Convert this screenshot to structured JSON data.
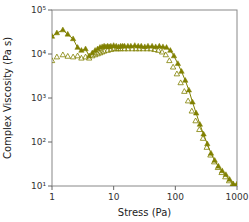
{
  "chart_data": {
    "type": "line",
    "xlabel": "Stress (Pa)",
    "ylabel": "Complex Viscosity (Pa s)",
    "log": true,
    "grid": false,
    "xlim": [
      1,
      1000
    ],
    "ylim": [
      10,
      100000
    ],
    "xticks": [
      1,
      10,
      100,
      1000
    ],
    "yticks": [
      {
        "value": 10,
        "label": "10¹"
      },
      {
        "value": 100,
        "label": "10²"
      },
      {
        "value": 1000,
        "label": "10³"
      },
      {
        "value": 10000,
        "label": "10⁴"
      },
      {
        "value": 100000,
        "label": "10⁵"
      }
    ],
    "series": [
      {
        "color": "#808000",
        "marker": "triangle",
        "line_style": "solid",
        "x": [
          1.0,
          1.2,
          1.5,
          1.8,
          2.2,
          2.6,
          3.0,
          3.5,
          4.0,
          4.5,
          5.0,
          5.5,
          6.0,
          6.5,
          7.0,
          7.5,
          8.0,
          8.5,
          9.0,
          10.0,
          11.0,
          12.0,
          13.0,
          14.0,
          15.0,
          17.0,
          19.0,
          22.0,
          25.0,
          28.0,
          32.0,
          36.0,
          42.0,
          48.0,
          55.0,
          63.0,
          72.0,
          83.0,
          95.0,
          110.0,
          126.0,
          145.0,
          166.0,
          190.0,
          218.0,
          250.0,
          287.0,
          330.0,
          379.0,
          435.0,
          500.0,
          575.0,
          660.0,
          758.0,
          870.0,
          1000.0
        ],
        "values": [
          25000,
          30000,
          35000,
          28000,
          22000,
          14000,
          12000,
          13000,
          9000,
          10500,
          12000,
          13000,
          14000,
          14500,
          15000,
          14500,
          15000,
          14500,
          15000,
          15500,
          15000,
          14500,
          15000,
          15000,
          15000,
          15000,
          15000,
          15500,
          15000,
          15000,
          14500,
          15000,
          15000,
          14500,
          15000,
          14500,
          14000,
          12000,
          9000,
          6000,
          4000,
          2500,
          1500,
          800,
          450,
          250,
          150,
          90,
          55,
          38,
          28,
          22,
          18,
          14,
          11,
          11
        ]
      },
      {
        "color": "#808000",
        "marker": "triangle-open",
        "line_style": "none",
        "x": [
          1.0,
          1.2,
          1.5,
          1.8,
          2.2,
          2.6,
          3.0,
          3.5,
          4.0,
          4.5,
          5.0,
          5.5,
          6.0,
          6.5,
          7.0,
          8.0,
          9.0,
          10.0,
          11.0,
          12.0,
          13.0,
          15.0,
          17.0,
          20.0,
          23.0,
          26.0,
          30.0,
          35.0,
          40.0,
          46.0,
          53.0,
          61.0,
          70.0,
          80.0,
          92.0,
          106.0,
          122.0,
          140.0,
          161.0,
          185.0,
          213.0,
          245.0,
          281.0,
          323.0,
          371.0,
          427.0,
          490.0,
          563.0,
          647.0,
          744.0,
          855.0,
          982.0
        ],
        "values": [
          7000,
          8500,
          9500,
          8800,
          8500,
          9000,
          8000,
          8500,
          8000,
          9000,
          9500,
          10000,
          10500,
          11000,
          11500,
          12000,
          12500,
          13000,
          13000,
          13000,
          13000,
          13000,
          13000,
          13000,
          13000,
          13000,
          13000,
          13000,
          13000,
          12500,
          12000,
          11000,
          9500,
          7000,
          5000,
          3500,
          2200,
          1400,
          850,
          500,
          300,
          190,
          120,
          75,
          50,
          35,
          26,
          20,
          16,
          13,
          11,
          10
        ]
      }
    ]
  }
}
